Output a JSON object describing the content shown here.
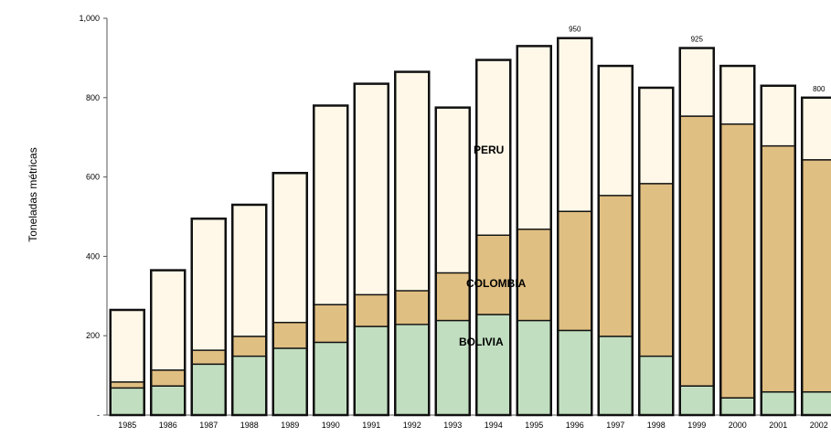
{
  "chart_data": {
    "type": "bar",
    "stacked": true,
    "title": "",
    "xlabel": "",
    "ylabel": "Toneladas métricas",
    "ylim": [
      0,
      1000
    ],
    "yticks": [
      "-",
      "200",
      "400",
      "600",
      "800",
      "1,000"
    ],
    "grid": false,
    "legend": "none",
    "categories": [
      "1985",
      "1986",
      "1987",
      "1988",
      "1989",
      "1990",
      "1991",
      "1992",
      "1993",
      "1994",
      "1995",
      "1996",
      "1997",
      "1998",
      "1999",
      "2000",
      "2001",
      "2002"
    ],
    "series": [
      {
        "name": "BOLIVIA",
        "color": "#c1dfc0",
        "values": [
          70,
          75,
          130,
          150,
          170,
          185,
          225,
          230,
          240,
          255,
          240,
          215,
          200,
          150,
          75,
          45,
          60,
          60
        ]
      },
      {
        "name": "COLOMBIA",
        "color": "#e0bf82",
        "values": [
          15,
          40,
          35,
          50,
          65,
          95,
          80,
          85,
          120,
          200,
          230,
          300,
          355,
          435,
          680,
          690,
          620,
          585
        ]
      },
      {
        "name": "PERU",
        "color": "#fff8e8",
        "values": [
          180,
          250,
          330,
          330,
          375,
          500,
          530,
          550,
          415,
          440,
          460,
          435,
          325,
          240,
          170,
          145,
          150,
          155
        ]
      }
    ],
    "annotations": [
      {
        "category": "1996",
        "text": "950"
      },
      {
        "category": "1999",
        "text": "925"
      },
      {
        "category": "2002",
        "text": "800"
      }
    ]
  }
}
